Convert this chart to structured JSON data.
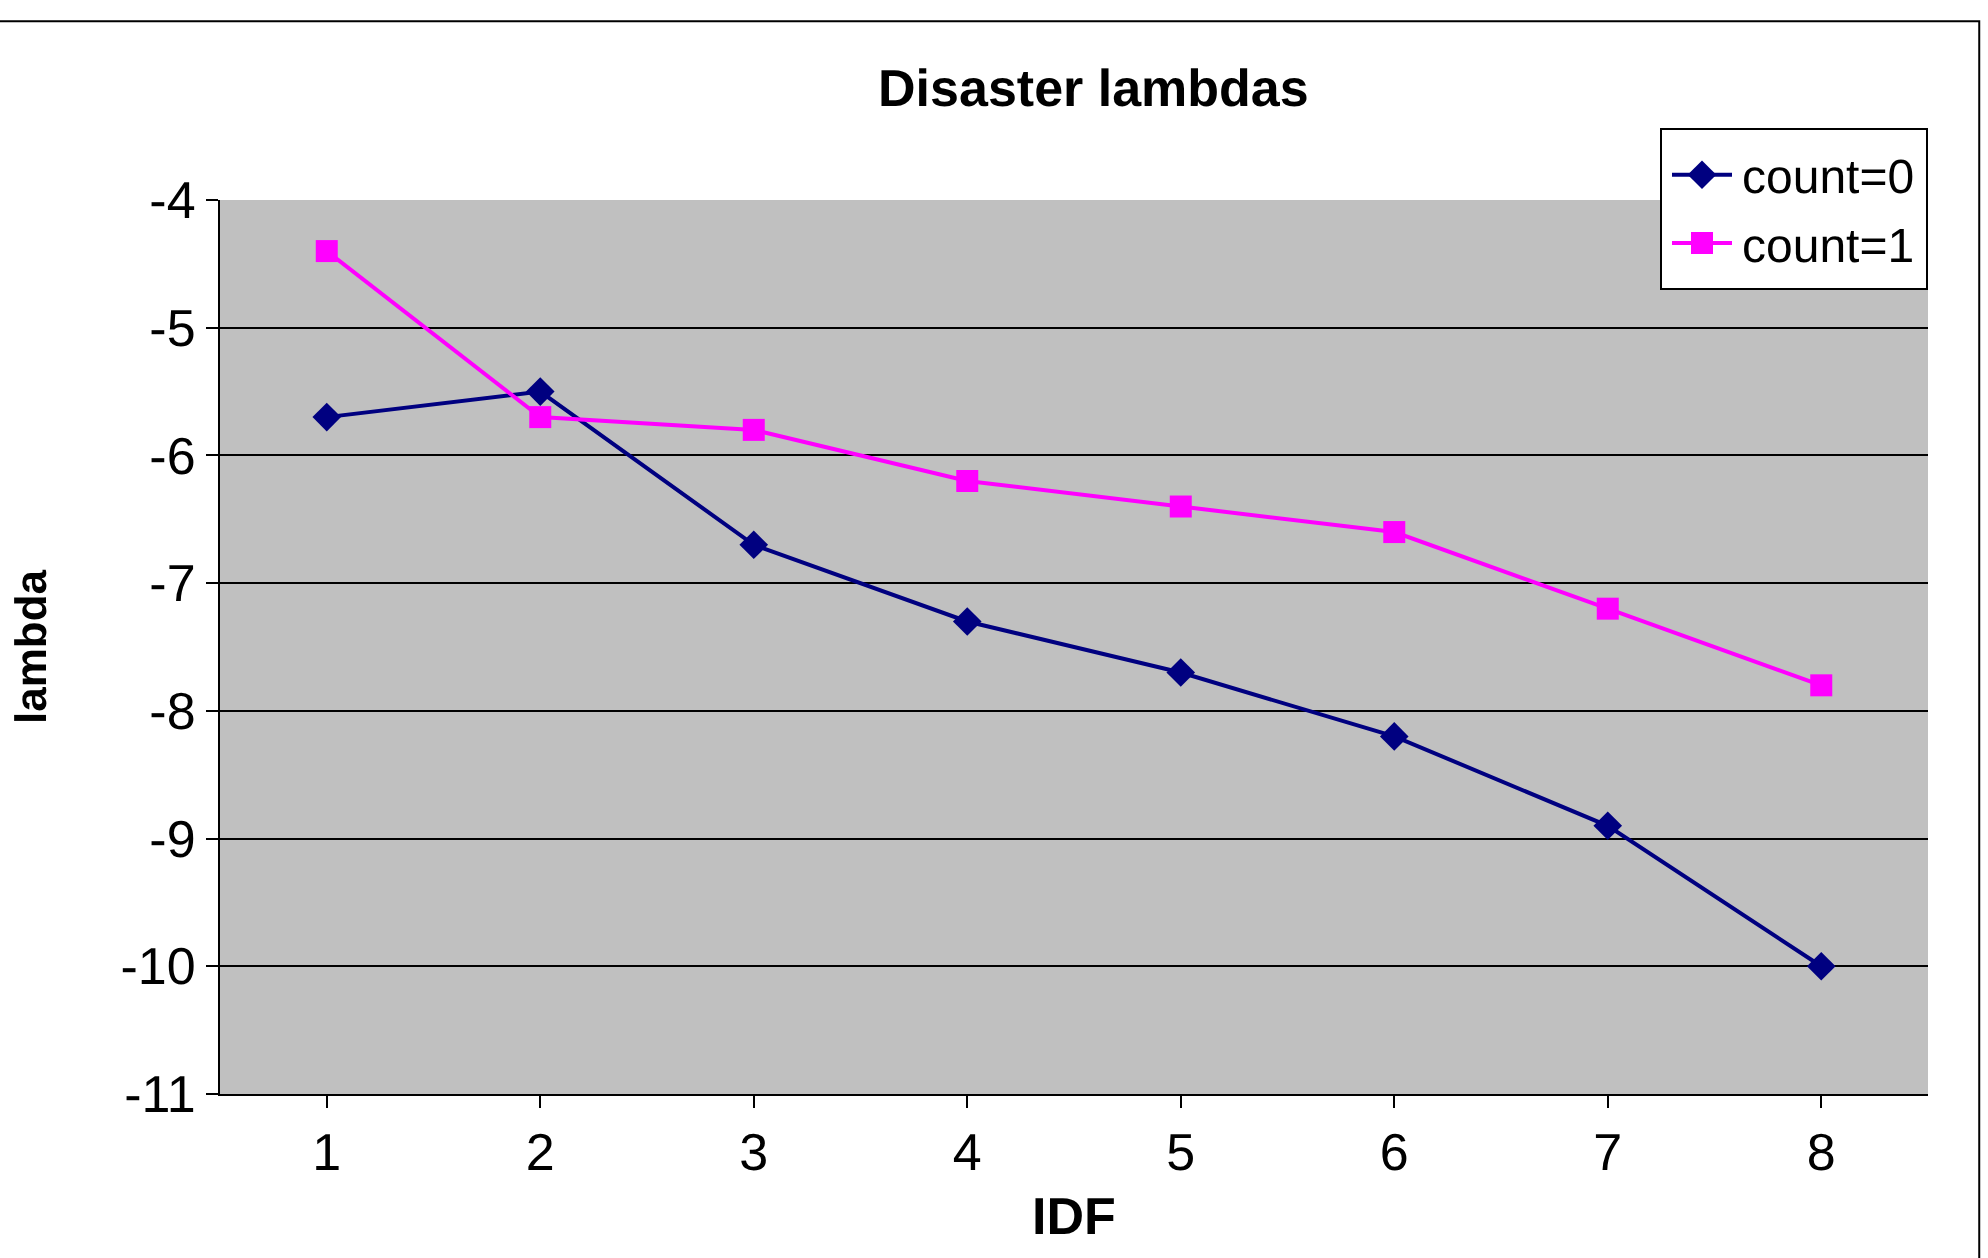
{
  "chart_data": {
    "type": "line",
    "title": "Disaster lambdas",
    "xlabel": "IDF",
    "ylabel": "lambda",
    "categories": [
      "1",
      "2",
      "3",
      "4",
      "5",
      "6",
      "7",
      "8"
    ],
    "series": [
      {
        "name": "count=0",
        "color": "#000080",
        "marker": "diamond",
        "values": [
          -5.7,
          -5.5,
          -6.7,
          -7.3,
          -7.7,
          -8.2,
          -8.9,
          -10.0
        ]
      },
      {
        "name": "count=1",
        "color": "#ff00ff",
        "marker": "square",
        "values": [
          -4.4,
          -5.7,
          -5.8,
          -6.2,
          -6.4,
          -6.6,
          -7.2,
          -7.8
        ]
      }
    ],
    "ylim": [
      -11,
      -4
    ],
    "yticks": [
      -11,
      -10,
      -9,
      -8,
      -7,
      -6,
      -5,
      -4
    ],
    "grid": "y",
    "legend": "top right",
    "line_style": "solid"
  }
}
